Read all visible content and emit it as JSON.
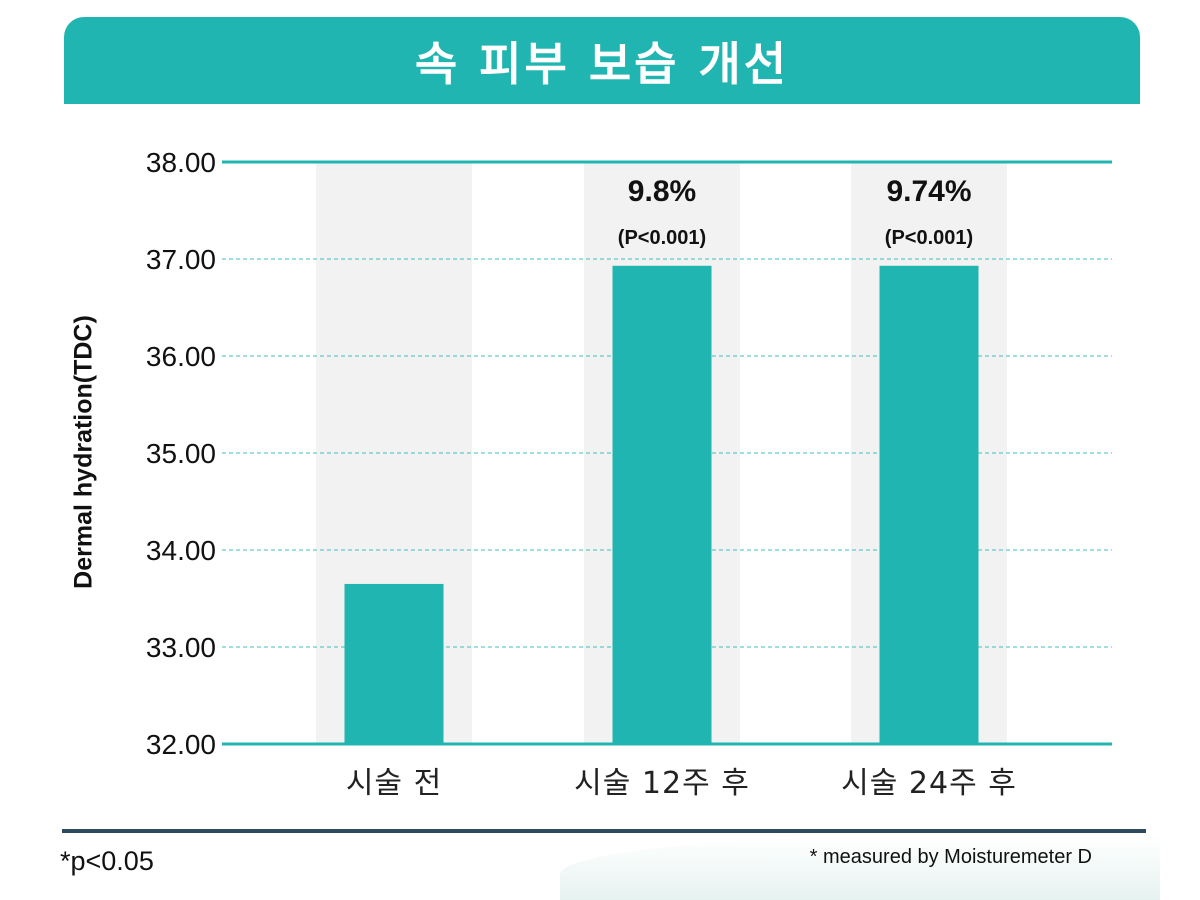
{
  "title": "속 피부 보습 개선",
  "footnotes": {
    "significance": "*p<0.05",
    "measurement": "* measured by Moisturemeter D"
  },
  "colors": {
    "accent": "#20b5b0",
    "column_background": "#f2f2f2",
    "footer_rule": "#2e4a5e"
  },
  "chart_data": {
    "type": "bar",
    "ylabel": "Dermal hydration(TDC)",
    "xlabel": "",
    "ylim": [
      32,
      38
    ],
    "yticks": [
      "38.00",
      "37.00",
      "36.00",
      "35.00",
      "34.00",
      "33.00",
      "32.00"
    ],
    "grid": "horizontal dashed",
    "categories": [
      "시술 전",
      "시술 12주 후",
      "시술 24주 후"
    ],
    "values": [
      33.65,
      36.93,
      36.93
    ],
    "annotations": [
      null,
      {
        "percent": "9.8%",
        "pvalue": "(P<0.001)"
      },
      {
        "percent": "9.74%",
        "pvalue": "(P<0.001)"
      }
    ]
  }
}
